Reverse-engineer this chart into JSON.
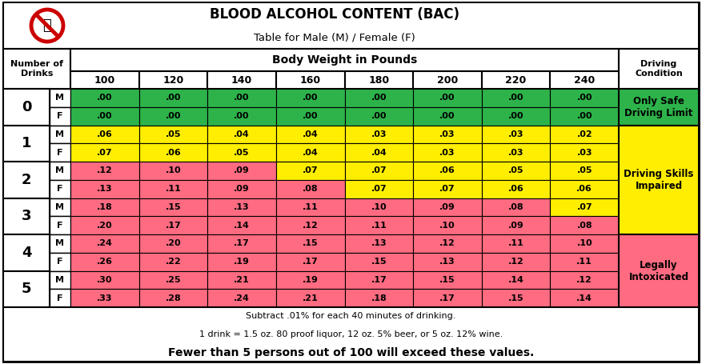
{
  "title_line1": "BLOOD ALCOHOL CONTENT (BAC)",
  "title_line2": "Table for Male (M) / Female (F)",
  "weights": [
    "100",
    "120",
    "140",
    "160",
    "180",
    "200",
    "220",
    "240"
  ],
  "table_data": {
    "0M": [
      ".00",
      ".00",
      ".00",
      ".00",
      ".00",
      ".00",
      ".00",
      ".00"
    ],
    "0F": [
      ".00",
      ".00",
      ".00",
      ".00",
      ".00",
      ".00",
      ".00",
      ".00"
    ],
    "1M": [
      ".06",
      ".05",
      ".04",
      ".04",
      ".03",
      ".03",
      ".03",
      ".02"
    ],
    "1F": [
      ".07",
      ".06",
      ".05",
      ".04",
      ".04",
      ".03",
      ".03",
      ".03"
    ],
    "2M": [
      ".12",
      ".10",
      ".09",
      ".07",
      ".07",
      ".06",
      ".05",
      ".05"
    ],
    "2F": [
      ".13",
      ".11",
      ".09",
      ".08",
      ".07",
      ".07",
      ".06",
      ".06"
    ],
    "3M": [
      ".18",
      ".15",
      ".13",
      ".11",
      ".10",
      ".09",
      ".08",
      ".07"
    ],
    "3F": [
      ".20",
      ".17",
      ".14",
      ".12",
      ".11",
      ".10",
      ".09",
      ".08"
    ],
    "4M": [
      ".24",
      ".20",
      ".17",
      ".15",
      ".13",
      ".12",
      ".11",
      ".10"
    ],
    "4F": [
      ".26",
      ".22",
      ".19",
      ".17",
      ".15",
      ".13",
      ".12",
      ".11"
    ],
    "5M": [
      ".30",
      ".25",
      ".21",
      ".19",
      ".17",
      ".15",
      ".14",
      ".12"
    ],
    "5F": [
      ".33",
      ".28",
      ".24",
      ".21",
      ".18",
      ".17",
      ".15",
      ".14"
    ]
  },
  "cell_colors": {
    "0M": [
      "green",
      "green",
      "green",
      "green",
      "green",
      "green",
      "green",
      "green"
    ],
    "0F": [
      "green",
      "green",
      "green",
      "green",
      "green",
      "green",
      "green",
      "green"
    ],
    "1M": [
      "yellow",
      "yellow",
      "yellow",
      "yellow",
      "yellow",
      "yellow",
      "yellow",
      "yellow"
    ],
    "1F": [
      "yellow",
      "yellow",
      "yellow",
      "yellow",
      "yellow",
      "yellow",
      "yellow",
      "yellow"
    ],
    "2M": [
      "red",
      "red",
      "red",
      "yellow",
      "yellow",
      "yellow",
      "yellow",
      "yellow"
    ],
    "2F": [
      "red",
      "red",
      "red",
      "red",
      "yellow",
      "yellow",
      "yellow",
      "yellow"
    ],
    "3M": [
      "red",
      "red",
      "red",
      "red",
      "red",
      "red",
      "red",
      "yellow"
    ],
    "3F": [
      "red",
      "red",
      "red",
      "red",
      "red",
      "red",
      "red",
      "red"
    ],
    "4M": [
      "red",
      "red",
      "red",
      "red",
      "red",
      "red",
      "red",
      "red"
    ],
    "4F": [
      "red",
      "red",
      "red",
      "red",
      "red",
      "red",
      "red",
      "red"
    ],
    "5M": [
      "red",
      "red",
      "red",
      "red",
      "red",
      "red",
      "red",
      "red"
    ],
    "5F": [
      "red",
      "red",
      "red",
      "red",
      "red",
      "red",
      "red",
      "red"
    ]
  },
  "color_map": {
    "green": "#2db34a",
    "yellow": "#ffee00",
    "red": "#ff6b81"
  },
  "footer_line1": "Subtract .01% for each 40 minutes of drinking.",
  "footer_line2": "1 drink = 1.5 oz. 80 proof liquor, 12 oz. 5% beer, or 5 oz. 12% wine.",
  "footer_line3": "Fewer than 5 persons out of 100 will exceed these values."
}
